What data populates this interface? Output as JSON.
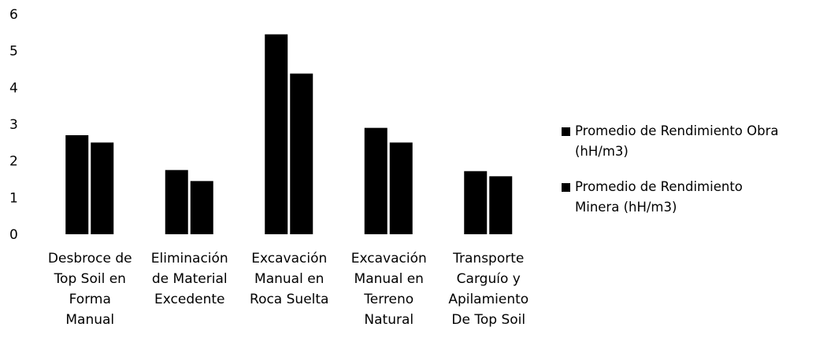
{
  "chart_data": {
    "type": "bar",
    "title": "",
    "xlabel": "",
    "ylabel": "",
    "ylim": [
      0,
      6
    ],
    "yticks": [
      "0",
      "1",
      "2",
      "3",
      "4",
      "5",
      "6"
    ],
    "grid": false,
    "legend_position": "right",
    "bar_color": "#000000",
    "categories": [
      [
        "Desbroce de",
        "Top Soil en",
        "Forma",
        "Manual"
      ],
      [
        "Eliminación",
        "de Material",
        "Excedente"
      ],
      [
        "Excavación",
        "Manual en",
        "Roca Suelta"
      ],
      [
        "Excavación",
        "Manual en",
        "Terreno",
        "Natural"
      ],
      [
        "Transporte",
        "Carguío y",
        "Apilamiento",
        "De Top Soil"
      ]
    ],
    "series": [
      {
        "name": "Promedio de Rendimiento Obra (hH/m3)",
        "legend_lines": "Promedio de Rendimiento Obra\n(hH/m3)",
        "values": [
          2.7,
          1.75,
          5.45,
          2.9,
          1.72
        ]
      },
      {
        "name": "Promedio de Rendimiento Minera  (hH/m3)",
        "legend_lines": "Promedio de Rendimiento\nMinera  (hH/m3)",
        "values": [
          2.5,
          1.45,
          4.38,
          2.5,
          1.58
        ]
      }
    ]
  }
}
